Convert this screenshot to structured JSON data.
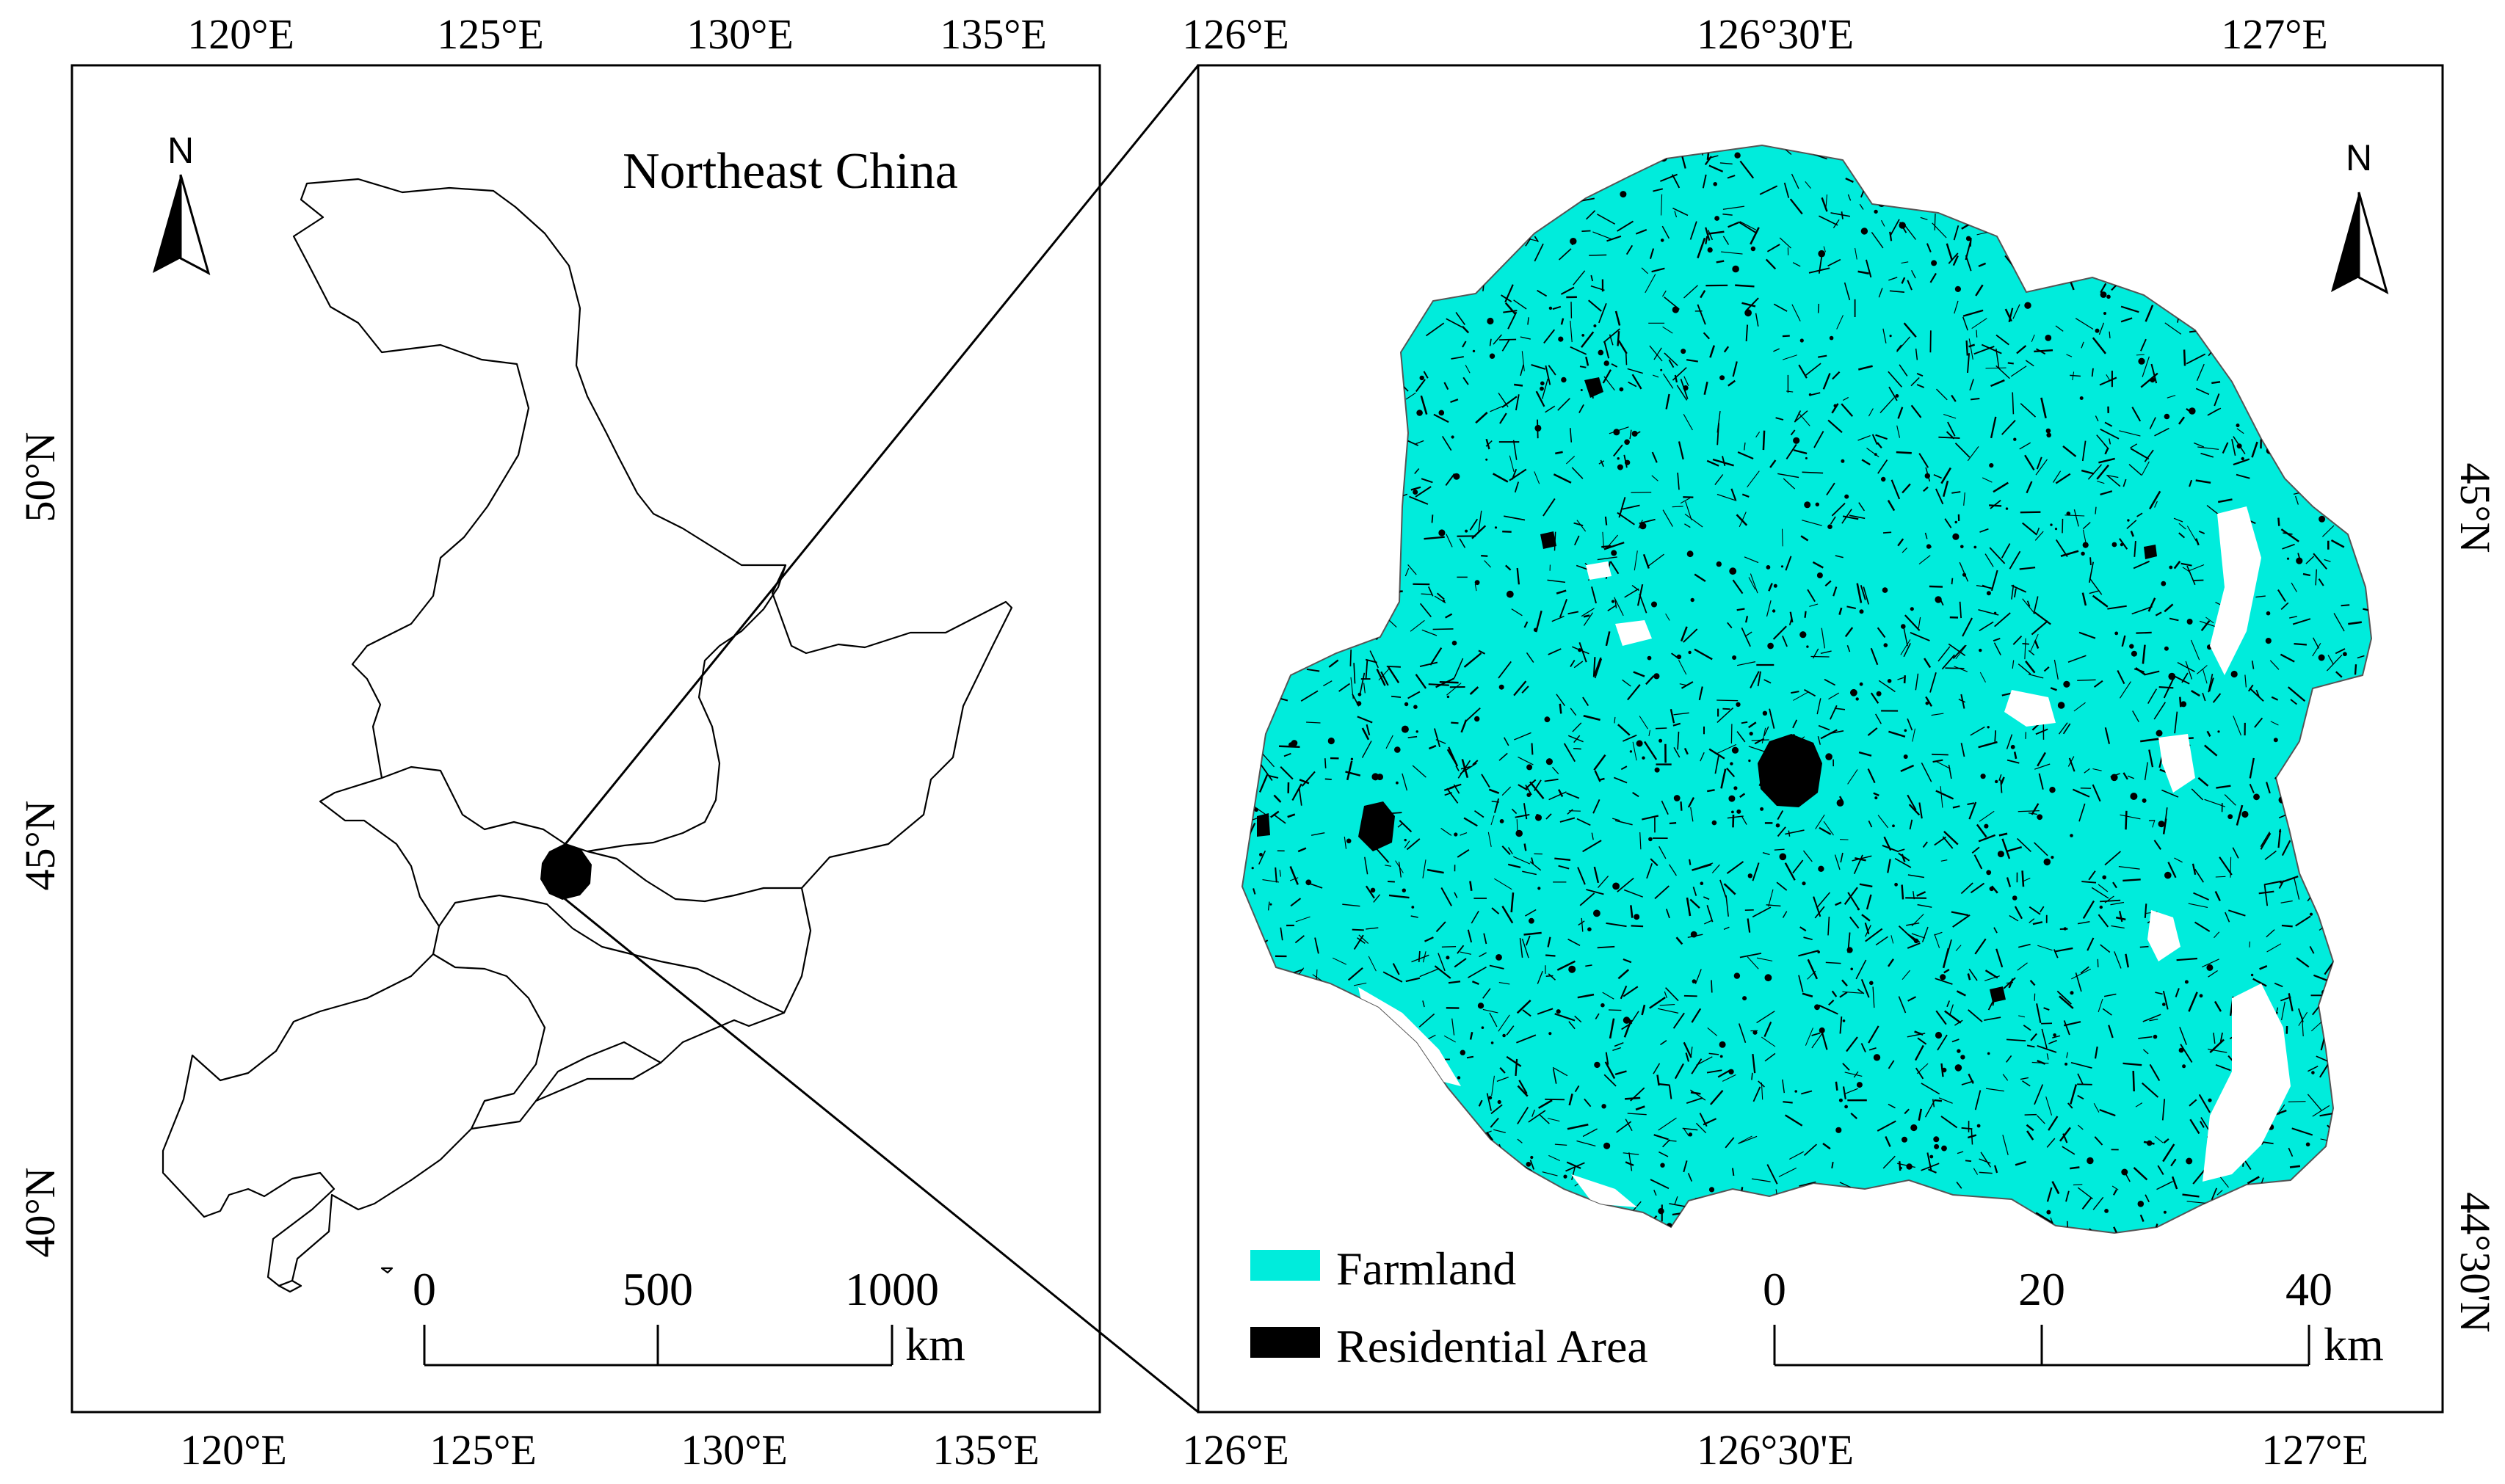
{
  "left_map": {
    "title": "Northeast China",
    "north_label": "N",
    "top_ticks": [
      "120°E",
      "125°E",
      "130°E",
      "135°E"
    ],
    "bottom_ticks": [
      "120°E",
      "125°E",
      "130°E",
      "135°E"
    ],
    "left_ticks": [
      "50°N",
      "45°N",
      "40°N"
    ],
    "scale": {
      "ticks": [
        "0",
        "500",
        "1000"
      ],
      "unit": "km"
    }
  },
  "right_map": {
    "north_label": "N",
    "top_ticks": [
      "126°E",
      "126°30'E",
      "127°E"
    ],
    "bottom_ticks": [
      "126°E",
      "126°30'E",
      "127°E"
    ],
    "right_ticks": [
      "45°N",
      "44°30'N"
    ],
    "scale": {
      "ticks": [
        "0",
        "20",
        "40"
      ],
      "unit": "km"
    },
    "legend": [
      {
        "label": "Farmland",
        "color": "#00ecdc"
      },
      {
        "label": "Residential Area",
        "color": "#000000"
      }
    ]
  }
}
